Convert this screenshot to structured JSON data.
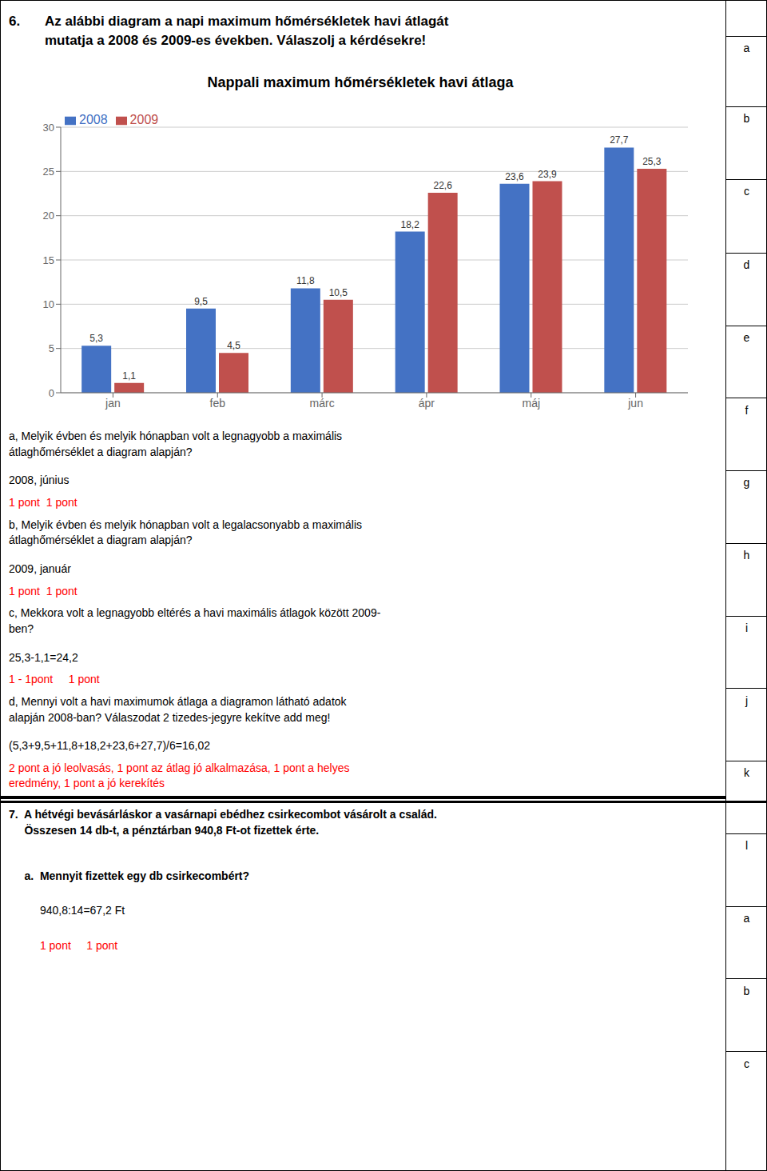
{
  "chart_data": {
    "type": "bar",
    "title": "Nappali maximum hőmérsékletek havi átlaga",
    "categories": [
      "jan",
      "feb",
      "márc",
      "ápr",
      "máj",
      "jun"
    ],
    "series": [
      {
        "name": "2008",
        "color": "#4472C4",
        "values": [
          5.3,
          9.5,
          11.8,
          18.2,
          23.6,
          27.7
        ],
        "value_labels": [
          "5,3",
          "9,5",
          "11,8",
          "18,2",
          "23,6",
          "27,7"
        ]
      },
      {
        "name": "2009",
        "color": "#C0504D",
        "values": [
          1.1,
          4.5,
          10.5,
          22.6,
          23.9,
          25.3
        ],
        "value_labels": [
          "1,1",
          "4,5",
          "10,5",
          "22,6",
          "23,9",
          "25,3"
        ]
      }
    ],
    "ylim": [
      0,
      30
    ],
    "yticks": [
      0,
      5,
      10,
      15,
      20,
      25,
      30
    ],
    "grid": true,
    "legend": "upper left",
    "data_labels": true,
    "annotations": [
      {
        "text": "6."
      },
      {
        "text": "Az alábbi diagram a napi maximum hőmérsékletek havi átlagát\nmutatja a 2008 és 2009-es években. Válaszolj a kérdésekre!"
      },
      {
        "text": "a, Melyik évben és melyik hónapban volt a legnagyobb a maximális\nátlaghőmérséklet a diagram alapján?"
      },
      {
        "text": "2008, június"
      },
      {
        "text": "1 pont  1 pont",
        "color": "red"
      },
      {
        "text": "b, Melyik évben és melyik hónapban volt a legalacsonyabb a maximális\nátlaghőmérséklet a diagram alapján?"
      },
      {
        "text": "2009, január"
      },
      {
        "text": "1 pont  1 pont",
        "color": "red"
      },
      {
        "text": "c, Mekkora volt a legnagyobb eltérés a havi maximális átlagok között 2009-\nben?"
      },
      {
        "text": "25,3-1,1=24,2"
      },
      {
        "text": "1 - 1pont     1 pont",
        "color": "red"
      },
      {
        "text": "d, Mennyi volt a havi maximumok átlaga a diagramon látható adatok\nalapján 2008-ban? Válaszodat 2 tizedes-jegyre kekítve add meg!"
      },
      {
        "text": "(5,3+9,5+11,8+18,2+23,6+27,7)/6=16,02"
      },
      {
        "text": "2 pont a jó leolvasás, 1 pont az átlag jó alkalmazása, 1 pont a helyes\neredmény, 1 pont a jó kerekítés",
        "color": "red"
      },
      {
        "text": "7.  A hétvégi bevásárláskor a vasárnapi ebédhez csirkecombot vásárolt a család.\n     Összesen 14 db-t, a pénztárban 940,8 Ft-ot fizettek érte."
      },
      {
        "text": "     a.  Mennyit fizettek egy db csirkecombért?"
      },
      {
        "text": "          940,8:14=67,2 Ft"
      },
      {
        "text": "          1 pont     1 pont",
        "color": "red"
      },
      {
        "text": "a"
      },
      {
        "text": "b"
      },
      {
        "text": "c"
      },
      {
        "text": "d"
      },
      {
        "text": "e"
      },
      {
        "text": "f"
      },
      {
        "text": "g"
      },
      {
        "text": "h"
      },
      {
        "text": "i"
      },
      {
        "text": "j"
      },
      {
        "text": "k"
      },
      {
        "text": "l"
      },
      {
        "text": "a"
      },
      {
        "text": "b"
      },
      {
        "text": "c"
      }
    ]
  }
}
